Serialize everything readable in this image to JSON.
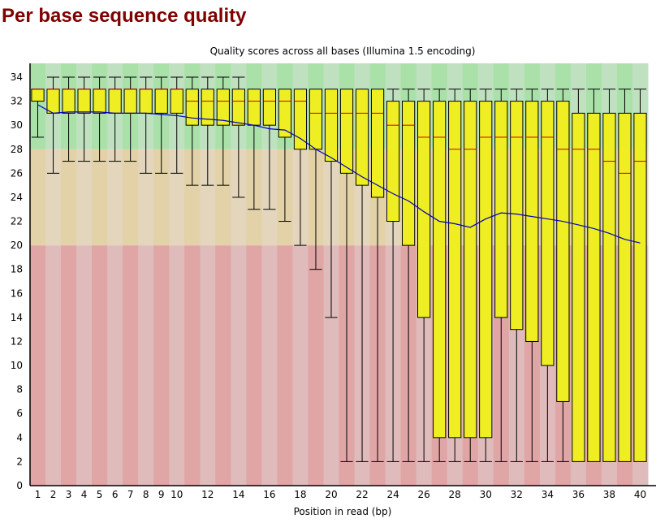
{
  "page": {
    "heading": "Per base sequence quality"
  },
  "chart_data": {
    "type": "boxplot",
    "title": "Quality scores across all bases (Illumina 1.5 encoding)",
    "xlabel": "Position in read (bp)",
    "ylabel": "",
    "ylim": [
      0,
      35
    ],
    "yticks": [
      0,
      2,
      4,
      6,
      8,
      10,
      12,
      14,
      16,
      18,
      20,
      22,
      24,
      26,
      28,
      30,
      32,
      34
    ],
    "xtick_labels": [
      "1",
      "2",
      "3",
      "4",
      "5",
      "6",
      "7",
      "8",
      "9",
      "10",
      "12",
      "14",
      "16",
      "18",
      "20",
      "22",
      "24",
      "26",
      "28",
      "30",
      "32",
      "34",
      "36",
      "38",
      "40"
    ],
    "bands": [
      {
        "name": "poor",
        "from": 0,
        "to": 20,
        "colors": [
          "#e0a5a5",
          "#e0bbbb"
        ]
      },
      {
        "name": "reasonable",
        "from": 20,
        "to": 28,
        "colors": [
          "#e3d1a8",
          "#e3d6bc"
        ]
      },
      {
        "name": "good",
        "from": 28,
        "to": 35,
        "colors": [
          "#a9e1a9",
          "#c0e1c0"
        ]
      }
    ],
    "colors": {
      "box_fill": "#eeee22",
      "box_stroke": "#000000",
      "median": "#cc0000",
      "mean_line": "#0000bb"
    },
    "positions": [
      "1",
      "2",
      "3",
      "4",
      "5",
      "6",
      "7",
      "8",
      "9",
      "10",
      "11",
      "12",
      "13",
      "14",
      "15",
      "16",
      "17",
      "18",
      "19",
      "20",
      "21",
      "22",
      "23",
      "24",
      "25",
      "26",
      "27",
      "28",
      "29",
      "30",
      "31",
      "32",
      "33",
      "34",
      "35",
      "36",
      "37",
      "38",
      "39",
      "40"
    ],
    "series": [
      {
        "name": "lower_whisker",
        "values": [
          29,
          26,
          27,
          27,
          27,
          27,
          27,
          26,
          26,
          26,
          25,
          25,
          25,
          24,
          23,
          23,
          22,
          20,
          18,
          14,
          2,
          2,
          2,
          2,
          2,
          2,
          2,
          2,
          2,
          2,
          2,
          2,
          2,
          2,
          2,
          2,
          2,
          2,
          2,
          2
        ]
      },
      {
        "name": "lower_quartile",
        "values": [
          32,
          31,
          31,
          31,
          31,
          31,
          31,
          31,
          31,
          31,
          30,
          30,
          30,
          30,
          30,
          30,
          29,
          28,
          28,
          27,
          26,
          25,
          24,
          22,
          20,
          14,
          4,
          4,
          4,
          4,
          14,
          13,
          12,
          10,
          7,
          2,
          2,
          2,
          2,
          2
        ]
      },
      {
        "name": "median",
        "values": [
          33,
          33,
          33,
          33,
          33,
          33,
          33,
          33,
          33,
          33,
          32,
          32,
          32,
          32,
          32,
          32,
          32,
          32,
          31,
          31,
          31,
          31,
          31,
          30,
          30,
          29,
          29,
          28,
          28,
          29,
          29,
          29,
          29,
          29,
          28,
          28,
          28,
          27,
          26,
          27
        ]
      },
      {
        "name": "upper_quartile",
        "values": [
          33,
          33,
          33,
          33,
          33,
          33,
          33,
          33,
          33,
          33,
          33,
          33,
          33,
          33,
          33,
          33,
          33,
          33,
          33,
          33,
          33,
          33,
          33,
          32,
          32,
          32,
          32,
          32,
          32,
          32,
          32,
          32,
          32,
          32,
          32,
          31,
          31,
          31,
          31,
          31
        ]
      },
      {
        "name": "upper_whisker",
        "values": [
          33,
          34,
          34,
          34,
          34,
          34,
          34,
          34,
          34,
          34,
          34,
          34,
          34,
          34,
          33,
          33,
          33,
          33,
          33,
          33,
          33,
          33,
          33,
          33,
          33,
          33,
          33,
          33,
          33,
          33,
          33,
          33,
          33,
          33,
          33,
          33,
          33,
          33,
          33,
          33
        ]
      },
      {
        "name": "mean",
        "values": [
          31.7,
          31.0,
          31.1,
          31.1,
          31.1,
          31.0,
          31.0,
          31.0,
          30.9,
          30.8,
          30.6,
          30.5,
          30.4,
          30.2,
          30.0,
          29.7,
          29.6,
          28.9,
          28.0,
          27.3,
          26.5,
          25.7,
          25.0,
          24.3,
          23.7,
          22.8,
          22.0,
          21.8,
          21.5,
          22.2,
          22.7,
          22.6,
          22.4,
          22.2,
          22.0,
          21.7,
          21.4,
          21.0,
          20.5,
          20.2
        ]
      }
    ],
    "grid": false,
    "legend": "none"
  }
}
